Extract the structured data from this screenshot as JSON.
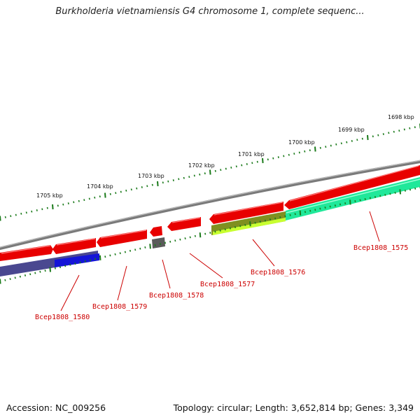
{
  "title": "Burkholderia vietnamiensis G4 chromosome 1, complete sequenc...",
  "footer": {
    "accession": "Accession: NC_009256",
    "topology": "Topology: circular; Length: 3,652,814 bp; Genes: 3,349"
  },
  "scale_labels": [
    "1698 kbp",
    "1699 kbp",
    "1700 kbp",
    "1701 kbp",
    "1702 kbp",
    "1703 kbp",
    "1704 kbp",
    "1705 kbp"
  ],
  "gene_labels": [
    "Bcep1808_1575",
    "Bcep1808_1576",
    "Bcep1808_1577",
    "Bcep1808_1578",
    "Bcep1808_1579",
    "Bcep1808_1580"
  ],
  "colors": {
    "forward_gene": "#e80000",
    "backbone": "#8a8a8a",
    "tick": "#1a7a1a",
    "label": "#cc0000",
    "cog_green": "#22e8a0",
    "cog_olive": "#8a9a20",
    "cog_blue": "#2020d0",
    "cog_purple": "#4a4890",
    "cog_gray": "#666666"
  }
}
